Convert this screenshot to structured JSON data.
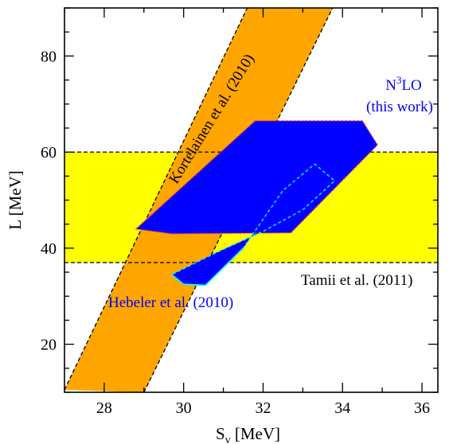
{
  "chart_data": {
    "type": "area",
    "xlabel": "S",
    "xlabel_sub": "v",
    "xlabel_unit": "[MeV]",
    "ylabel": "L [MeV]",
    "xlim": [
      27,
      36.4
    ],
    "ylim": [
      10,
      90
    ],
    "xticks": [
      28,
      30,
      32,
      34,
      36
    ],
    "yticks": [
      20,
      40,
      60,
      80
    ],
    "grid": false,
    "regions": [
      {
        "name": "Kortelainen et al. (2010)",
        "color": "#ffa500",
        "polygon": [
          [
            27.0,
            10.5
          ],
          [
            29.0,
            10.0
          ],
          [
            33.75,
            90.0
          ],
          [
            31.6,
            90.0
          ]
        ]
      },
      {
        "name": "Tamii et al. (2011)",
        "color": "#ffff00",
        "y_range": [
          37.0,
          60.0
        ]
      },
      {
        "name": "Hebeler et al. (2010)",
        "color": "#0000ff",
        "polygon": [
          [
            29.7,
            34.5
          ],
          [
            30.0,
            32.5
          ],
          [
            30.55,
            32.3
          ],
          [
            31.5,
            40.0
          ],
          [
            32.5,
            52.0
          ],
          [
            33.3,
            57.5
          ],
          [
            33.8,
            54.0
          ],
          [
            33.0,
            48.0
          ],
          [
            32.0,
            43.5
          ],
          [
            30.8,
            39.0
          ]
        ]
      },
      {
        "name": "N3LO (this work)",
        "color": "#0000ff",
        "polygon": [
          [
            28.8,
            44.0
          ],
          [
            31.8,
            66.5
          ],
          [
            34.5,
            66.5
          ],
          [
            34.88,
            61.5
          ],
          [
            32.7,
            43.2
          ],
          [
            29.7,
            43.0
          ]
        ]
      }
    ],
    "annotations": {
      "kortelainen": "Kortelainen et al. (2010)",
      "n3lo_main": "N",
      "n3lo_sup": "3",
      "n3lo_tail": "LO",
      "n3lo_sub": "(this work)",
      "tamii": "Tamii et al. (2011)",
      "hebeler": "Hebeler et al. (2010)"
    }
  }
}
